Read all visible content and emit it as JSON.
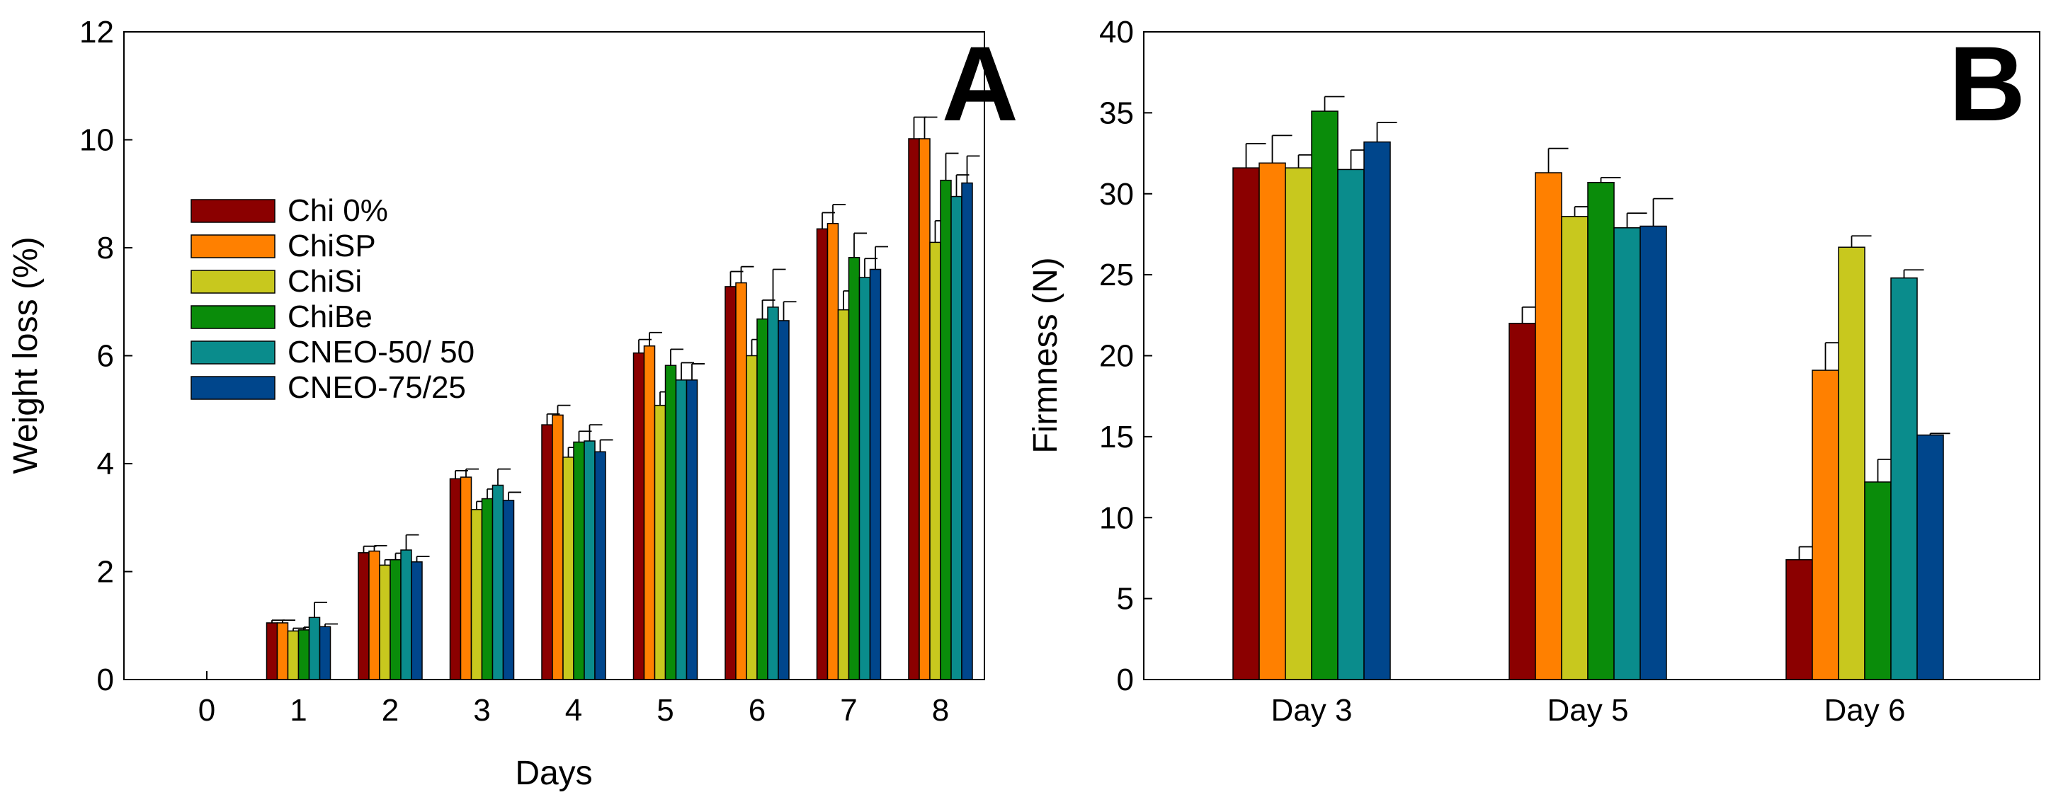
{
  "chart_data": [
    {
      "type": "bar",
      "panel_label": "A",
      "xlabel": "Days",
      "ylabel": "Weight loss (%)",
      "ylim": [
        0,
        12
      ],
      "yticks": [
        "0",
        "2",
        "4",
        "6",
        "8",
        "10",
        "12"
      ],
      "categories": [
        "0",
        "1",
        "2",
        "3",
        "4",
        "5",
        "6",
        "7",
        "8"
      ],
      "legend_position": "middle-left",
      "series": [
        {
          "name": "Chi 0%",
          "color": "#8B0000",
          "values": [
            0,
            1.05,
            2.35,
            3.72,
            4.72,
            6.05,
            7.28,
            8.35,
            10.02
          ],
          "errors": [
            0,
            0.05,
            0.12,
            0.15,
            0.2,
            0.25,
            0.28,
            0.3,
            0.4
          ]
        },
        {
          "name": "ChiSP",
          "color": "#FF8000",
          "values": [
            0,
            1.05,
            2.38,
            3.75,
            4.9,
            6.18,
            7.35,
            8.45,
            10.02
          ],
          "errors": [
            0,
            0.05,
            0.1,
            0.15,
            0.18,
            0.25,
            0.3,
            0.35,
            0.4
          ]
        },
        {
          "name": "ChiSi",
          "color": "#C8C81E",
          "values": [
            0,
            0.9,
            2.12,
            3.15,
            4.12,
            5.08,
            6.0,
            6.85,
            8.1
          ],
          "errors": [
            0,
            0.05,
            0.1,
            0.15,
            0.18,
            0.25,
            0.3,
            0.35,
            0.4
          ]
        },
        {
          "name": "ChiBe",
          "color": "#0A8C0A",
          "values": [
            0,
            0.92,
            2.22,
            3.35,
            4.4,
            5.82,
            6.68,
            7.82,
            9.25
          ],
          "errors": [
            0,
            0.05,
            0.12,
            0.18,
            0.2,
            0.3,
            0.35,
            0.45,
            0.5
          ]
        },
        {
          "name": "CNEO-50/ 50",
          "color": "#0A8C8C",
          "values": [
            0,
            1.15,
            2.4,
            3.6,
            4.42,
            5.55,
            6.9,
            7.45,
            8.95
          ],
          "errors": [
            0,
            0.28,
            0.28,
            0.3,
            0.3,
            0.32,
            0.7,
            0.35,
            0.4
          ]
        },
        {
          "name": "CNEO-75/25",
          "color": "#00468C",
          "values": [
            0,
            0.98,
            2.18,
            3.32,
            4.22,
            5.55,
            6.65,
            7.6,
            9.2
          ],
          "errors": [
            0,
            0.05,
            0.1,
            0.15,
            0.22,
            0.3,
            0.35,
            0.42,
            0.5
          ]
        }
      ]
    },
    {
      "type": "bar",
      "panel_label": "B",
      "xlabel": "",
      "ylabel": "Firmness (N)",
      "ylim": [
        0,
        40
      ],
      "yticks": [
        "0",
        "5",
        "10",
        "15",
        "20",
        "25",
        "30",
        "35",
        "40"
      ],
      "categories": [
        "Day 3",
        "Day 5",
        "Day 6"
      ],
      "series": [
        {
          "name": "Chi 0%",
          "color": "#8B0000",
          "values": [
            31.6,
            22.0,
            7.4
          ],
          "errors": [
            1.5,
            1.0,
            0.8
          ]
        },
        {
          "name": "ChiSP",
          "color": "#FF8000",
          "values": [
            31.9,
            31.3,
            19.1
          ],
          "errors": [
            1.7,
            1.5,
            1.7
          ]
        },
        {
          "name": "ChiSi",
          "color": "#C8C81E",
          "values": [
            31.6,
            28.6,
            26.7
          ],
          "errors": [
            0.8,
            0.6,
            0.7
          ]
        },
        {
          "name": "ChiBe",
          "color": "#0A8C0A",
          "values": [
            35.1,
            30.7,
            12.2
          ],
          "errors": [
            0.9,
            0.3,
            1.4
          ]
        },
        {
          "name": "CNEO-50/ 50",
          "color": "#0A8C8C",
          "values": [
            31.5,
            27.9,
            24.8
          ],
          "errors": [
            1.2,
            0.9,
            0.5
          ]
        },
        {
          "name": "CNEO-75/25",
          "color": "#00468C",
          "values": [
            33.2,
            28.0,
            15.1
          ],
          "errors": [
            1.2,
            1.7,
            0.1
          ]
        }
      ]
    }
  ]
}
